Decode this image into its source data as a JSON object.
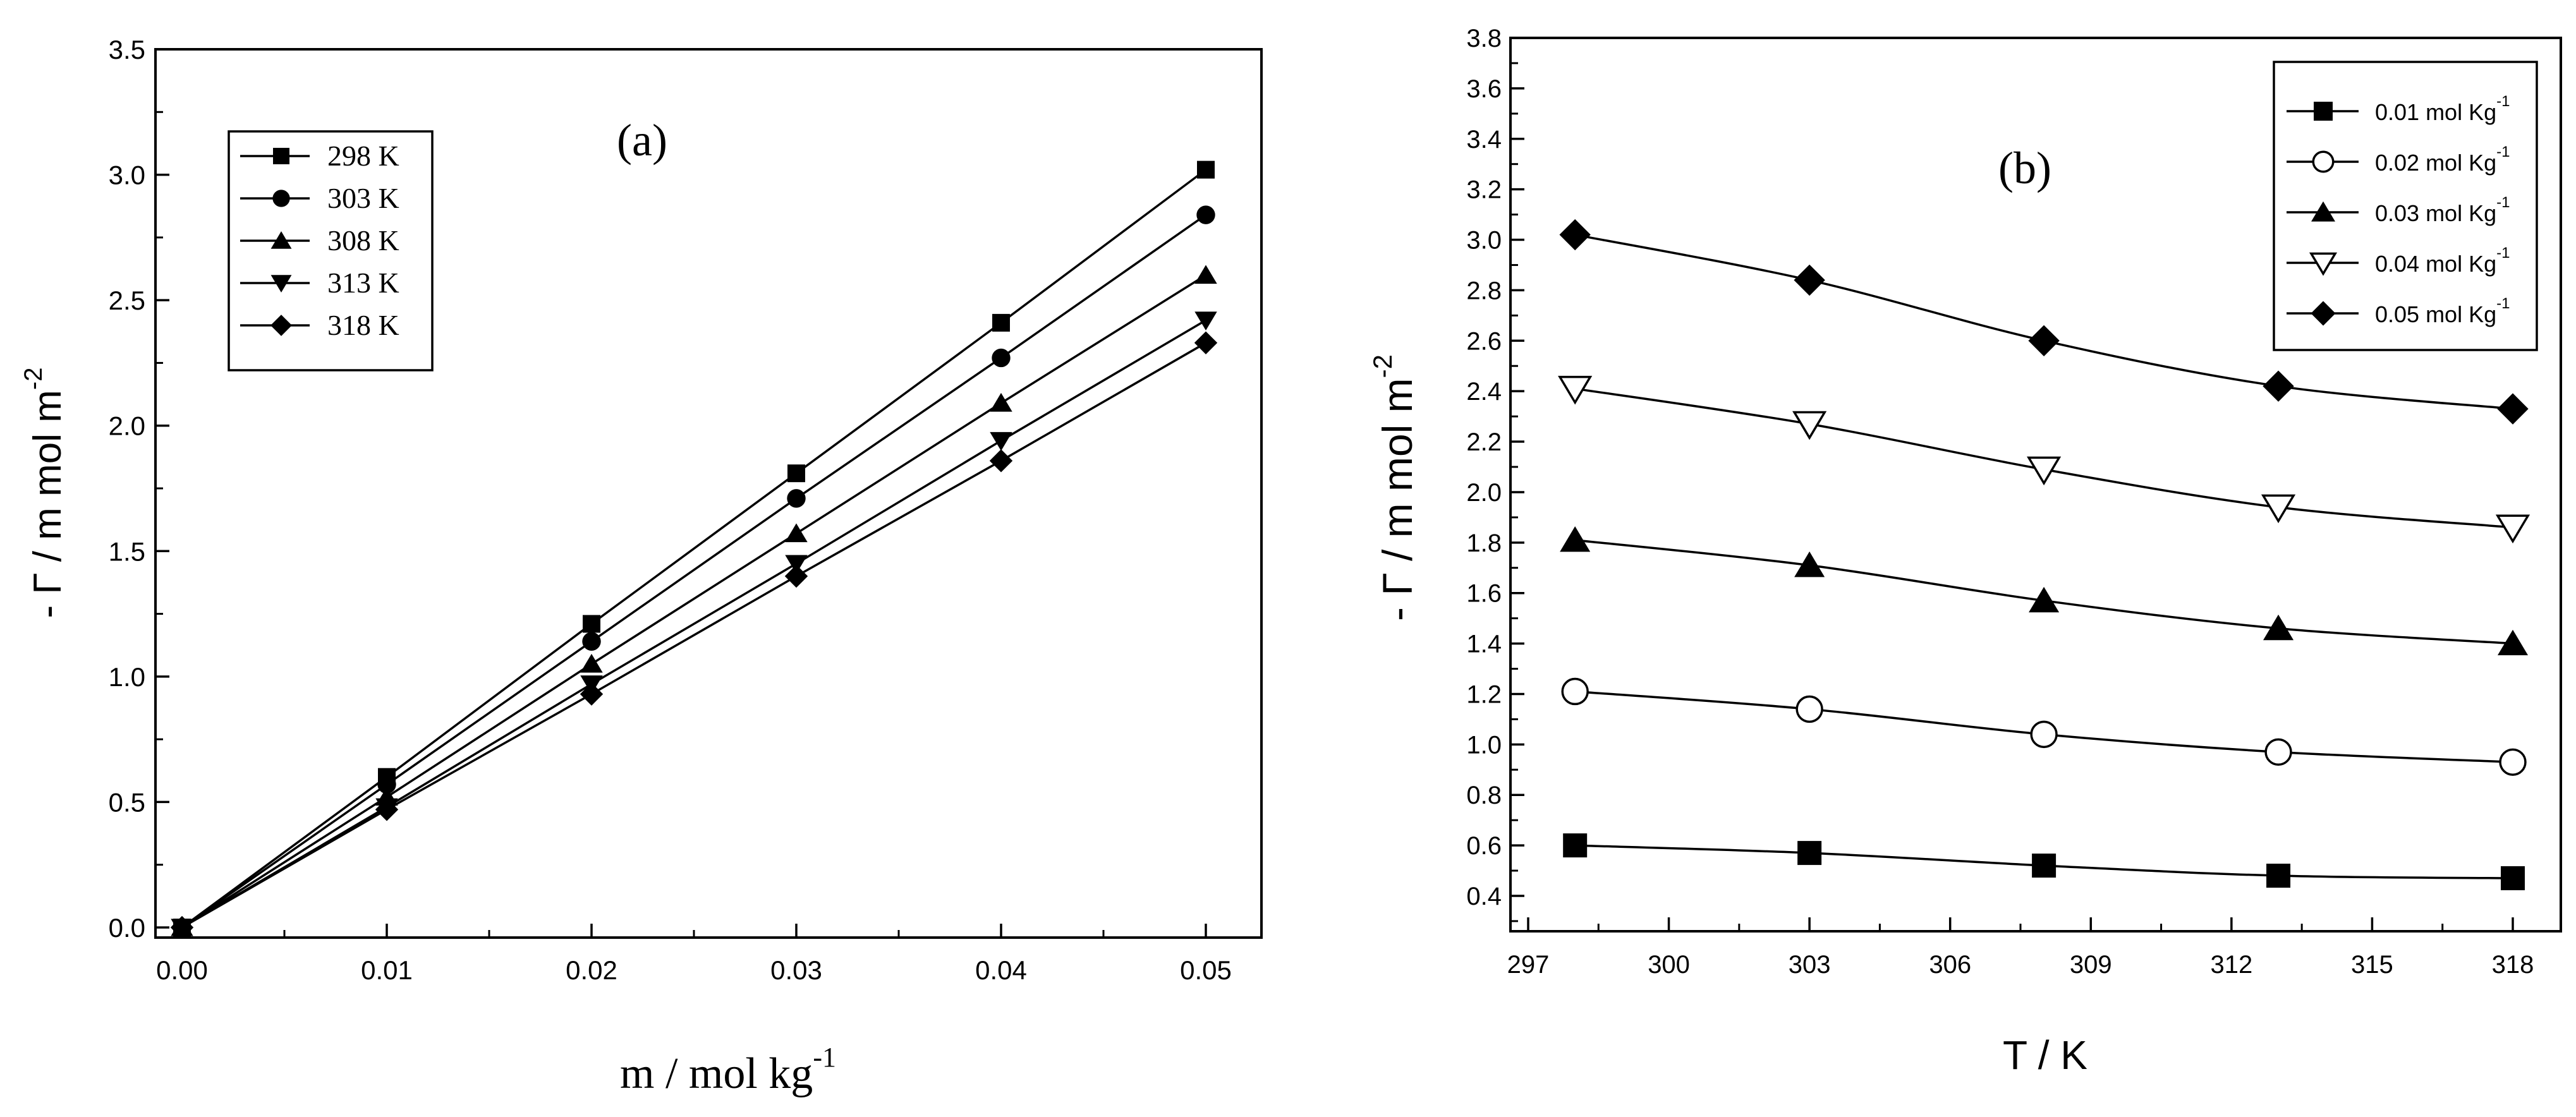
{
  "chart_data": [
    {
      "type": "line",
      "panel_label": "(a)",
      "xlabel": "m / mol kg",
      "xlabel_sup": "-1",
      "ylabel": "- Γ / m mol m",
      "ylabel_sup": "-2",
      "xlim": [
        0.0,
        0.05
      ],
      "ylim": [
        0.0,
        3.5
      ],
      "xticks": [
        "0.00",
        "0.01",
        "0.02",
        "0.03",
        "0.04",
        "0.05"
      ],
      "yticks": [
        "0.0",
        "0.5",
        "1.0",
        "1.5",
        "2.0",
        "2.5",
        "3.0",
        "3.5"
      ],
      "legend_position": "top-left",
      "x": [
        0.0,
        0.01,
        0.02,
        0.03,
        0.04,
        0.05
      ],
      "series": [
        {
          "name": "298 K",
          "marker": "square",
          "values": [
            0.0,
            0.6,
            1.21,
            1.81,
            2.41,
            3.02
          ]
        },
        {
          "name": "303 K",
          "marker": "circle",
          "values": [
            0.0,
            0.57,
            1.14,
            1.71,
            2.27,
            2.84
          ]
        },
        {
          "name": "308 K",
          "marker": "triangle-up",
          "values": [
            0.0,
            0.52,
            1.05,
            1.57,
            2.09,
            2.6
          ]
        },
        {
          "name": "313 K",
          "marker": "triangle-down",
          "values": [
            0.0,
            0.48,
            0.97,
            1.45,
            1.94,
            2.42
          ]
        },
        {
          "name": "318 K",
          "marker": "diamond",
          "values": [
            0.0,
            0.47,
            0.93,
            1.4,
            1.86,
            2.33
          ]
        }
      ]
    },
    {
      "type": "line",
      "panel_label": "(b)",
      "xlabel": "T / K",
      "ylabel": "- Γ / m mol m",
      "ylabel_sup": "-2",
      "xlim": [
        297,
        320
      ],
      "ylim": [
        0.2,
        3.8
      ],
      "xticks": [
        "297",
        "300",
        "303",
        "306",
        "309",
        "312",
        "315",
        "318"
      ],
      "yticks": [
        "0.4",
        "0.6",
        "0.8",
        "1.0",
        "1.2",
        "1.4",
        "1.6",
        "1.8",
        "2.0",
        "2.2",
        "2.4",
        "2.6",
        "2.8",
        "3.0",
        "3.2",
        "3.4",
        "3.6",
        "3.8"
      ],
      "legend_position": "top-right",
      "legend_sup": "-1",
      "x": [
        298,
        303,
        308,
        313,
        318
      ],
      "series": [
        {
          "name": "0.01 mol Kg",
          "marker": "square",
          "values": [
            0.6,
            0.57,
            0.52,
            0.48,
            0.47
          ]
        },
        {
          "name": "0.02 mol Kg",
          "marker": "circle-open",
          "values": [
            1.21,
            1.14,
            1.04,
            0.97,
            0.93
          ]
        },
        {
          "name": "0.03 mol Kg",
          "marker": "triangle-up",
          "values": [
            1.81,
            1.71,
            1.57,
            1.46,
            1.4
          ]
        },
        {
          "name": "0.04 mol Kg",
          "marker": "triangle-down-open",
          "values": [
            2.41,
            2.27,
            2.09,
            1.94,
            1.86
          ]
        },
        {
          "name": "0.05 mol Kg",
          "marker": "diamond",
          "values": [
            3.02,
            2.84,
            2.6,
            2.42,
            2.33
          ]
        }
      ]
    }
  ]
}
